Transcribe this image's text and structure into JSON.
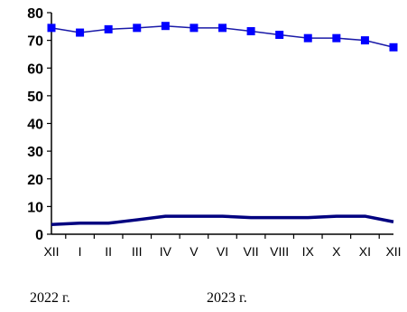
{
  "chart_data": {
    "type": "line",
    "categories": [
      "XII",
      "I",
      "II",
      "III",
      "IV",
      "V",
      "VI",
      "VII",
      "VIII",
      "IX",
      "X",
      "XI",
      "XII"
    ],
    "ylim": [
      0,
      80
    ],
    "yticks": [
      0,
      10,
      20,
      30,
      40,
      50,
      60,
      70,
      80
    ],
    "grid": false,
    "legend": "none",
    "series": [
      {
        "values": [
          74.5,
          72.8,
          74.0,
          74.5,
          75.2,
          74.5,
          74.5,
          73.3,
          72.0,
          70.8,
          70.8,
          70.0,
          67.5
        ],
        "color": "#0000ff",
        "line_color": "#1a1aa8",
        "marker": "square"
      },
      {
        "values": [
          3.5,
          4.0,
          4.0,
          5.2,
          6.5,
          6.5,
          6.5,
          6.0,
          6.0,
          6.0,
          6.5,
          6.5,
          4.5
        ],
        "color": "#000080",
        "marker": "none"
      }
    ]
  },
  "year_labels": [
    "2022 г.",
    "2023 г."
  ]
}
